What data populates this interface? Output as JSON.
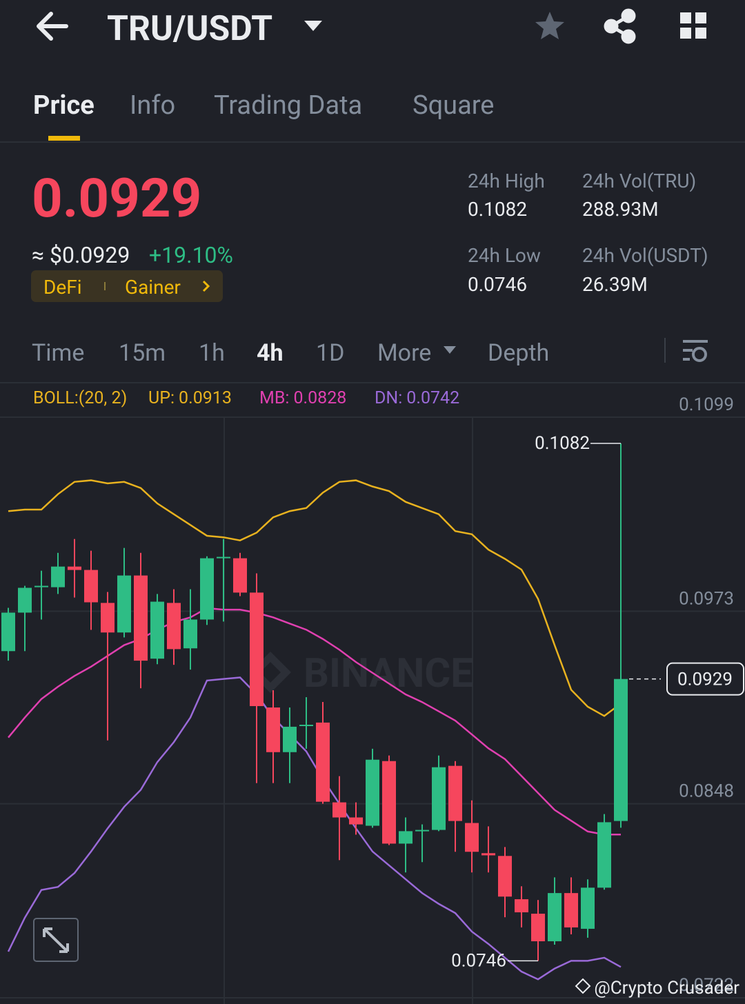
{
  "header": {
    "pair": "TRU/USDT"
  },
  "tabs": [
    "Price",
    "Info",
    "Trading Data",
    "Square"
  ],
  "active_tab": "Price",
  "price": {
    "last": "0.0929",
    "fiat": "≈ $0.0929",
    "change": "+19.10%",
    "tags": [
      "DeFi",
      "Gainer"
    ]
  },
  "stats": [
    {
      "label": "24h High",
      "value": "0.1082"
    },
    {
      "label": "24h Vol(TRU)",
      "value": "288.93M"
    },
    {
      "label": "24h Low",
      "value": "0.0746"
    },
    {
      "label": "24h Vol(USDT)",
      "value": "26.39M"
    }
  ],
  "intervals": [
    "Time",
    "15m",
    "1h",
    "4h",
    "1D",
    "More",
    "Depth"
  ],
  "active_interval": "4h",
  "watermark": "@Crypto Crusader",
  "chart_data": {
    "type": "candlestick",
    "indicator": "BOLL:(20, 2)",
    "watermark": "BINANCE",
    "up_color": "#2ebd85",
    "down_color": "#f6465d",
    "candles": {
      "open": [
        0.09471,
        0.09721,
        0.09886,
        0.09886,
        0.1002,
        0.09998,
        0.09784,
        0.09592,
        0.09962,
        0.09422,
        0.09784,
        0.09489,
        0.09676,
        0.10074,
        0.10074,
        0.09851,
        0.09105,
        0.08815,
        0.08985,
        0.09007,
        0.08489,
        0.08391,
        0.08337,
        0.08757,
        0.08221,
        0.08302,
        0.0831,
        0.08726,
        0.08355,
        0.08159,
        0.08141,
        0.0786,
        0.07766,
        0.07587,
        0.079,
        0.07668,
        0.07935,
        0.08368
      ],
      "high": [
        0.09752,
        0.09895,
        0.09993,
        0.10109,
        0.10199,
        0.10123,
        0.09855,
        0.10141,
        0.10109,
        0.09842,
        0.09873,
        0.09873,
        0.10087,
        0.10199,
        0.10109,
        0.09976,
        0.09217,
        0.09105,
        0.09172,
        0.09141,
        0.08659,
        0.08489,
        0.08837,
        0.08793,
        0.08391,
        0.08346,
        0.08793,
        0.08757,
        0.08502,
        0.08333,
        0.08199,
        0.07944,
        0.07855,
        0.08002,
        0.08002,
        0.07989,
        0.08413,
        0.1082
      ],
      "low": [
        0.09409,
        0.09471,
        0.09676,
        0.09842,
        0.09819,
        0.09609,
        0.08891,
        0.0956,
        0.0923,
        0.09386,
        0.09382,
        0.09351,
        0.09641,
        0.09663,
        0.09828,
        0.08614,
        0.08614,
        0.08614,
        0.08837,
        0.0848,
        0.08114,
        0.08279,
        0.08324,
        0.08212,
        0.08034,
        0.08101,
        0.08302,
        0.08168,
        0.08034,
        0.08034,
        0.07743,
        0.07677,
        0.0746,
        0.07565,
        0.07632,
        0.0761,
        0.07922,
        0.08324
      ],
      "close": [
        0.09721,
        0.09882,
        0.09895,
        0.1002,
        0.09998,
        0.09788,
        0.09592,
        0.09962,
        0.09409,
        0.09792,
        0.09484,
        0.09676,
        0.10074,
        0.10083,
        0.09851,
        0.09114,
        0.08815,
        0.0898,
        0.08993,
        0.08493,
        0.08391,
        0.08346,
        0.08766,
        0.08221,
        0.08302,
        0.0831,
        0.08717,
        0.08368,
        0.08168,
        0.08145,
        0.07877,
        0.07775,
        0.07587,
        0.079,
        0.07677,
        0.07935,
        0.0836,
        0.0929
      ]
    },
    "series": [
      {
        "name": "UP:",
        "color": "#e8b21f",
        "values": [
          0.1038,
          0.1039,
          0.1039,
          0.1049,
          0.1057,
          0.1058,
          0.1056,
          0.1057,
          0.1053,
          0.1043,
          0.1036,
          0.1029,
          0.1022,
          0.1021,
          0.1019,
          0.1024,
          0.1034,
          0.1038,
          0.104,
          0.105,
          0.1057,
          0.1058,
          0.1054,
          0.1051,
          0.1044,
          0.104,
          0.1036,
          0.1025,
          0.1023,
          0.1013,
          0.1007,
          0.1,
          0.0981,
          0.0951,
          0.0922,
          0.0911,
          0.0905,
          0.0913
        ]
      },
      {
        "name": "MB:",
        "color": "#e040b0",
        "values": [
          0.0891,
          0.0904,
          0.0916,
          0.0924,
          0.0931,
          0.0937,
          0.0944,
          0.0951,
          0.0955,
          0.0961,
          0.0966,
          0.0969,
          0.0975,
          0.0974,
          0.0974,
          0.0972,
          0.0969,
          0.0965,
          0.0961,
          0.0955,
          0.0948,
          0.094,
          0.0933,
          0.0926,
          0.0919,
          0.0914,
          0.0908,
          0.0902,
          0.0893,
          0.0884,
          0.0877,
          0.0866,
          0.0855,
          0.0844,
          0.0837,
          0.083,
          0.0828,
          0.0828
        ]
      },
      {
        "name": "DN:",
        "color": "#9a6ad8",
        "values": [
          0.0752,
          0.0774,
          0.0792,
          0.0794,
          0.0803,
          0.0817,
          0.0832,
          0.0846,
          0.0857,
          0.0875,
          0.0888,
          0.0904,
          0.0928,
          0.0929,
          0.093,
          0.0919,
          0.0904,
          0.0893,
          0.0882,
          0.0864,
          0.0848,
          0.0832,
          0.0817,
          0.0808,
          0.0799,
          0.079,
          0.0783,
          0.0777,
          0.0765,
          0.0757,
          0.0748,
          0.0739,
          0.0734,
          0.0741,
          0.0746,
          0.0746,
          0.0748,
          0.0742
        ]
      }
    ],
    "ylim": [
      0.0722,
      0.1099
    ],
    "yticks": [
      0.1099,
      0.0973,
      0.0848,
      0.0722
    ],
    "grid": true
  }
}
